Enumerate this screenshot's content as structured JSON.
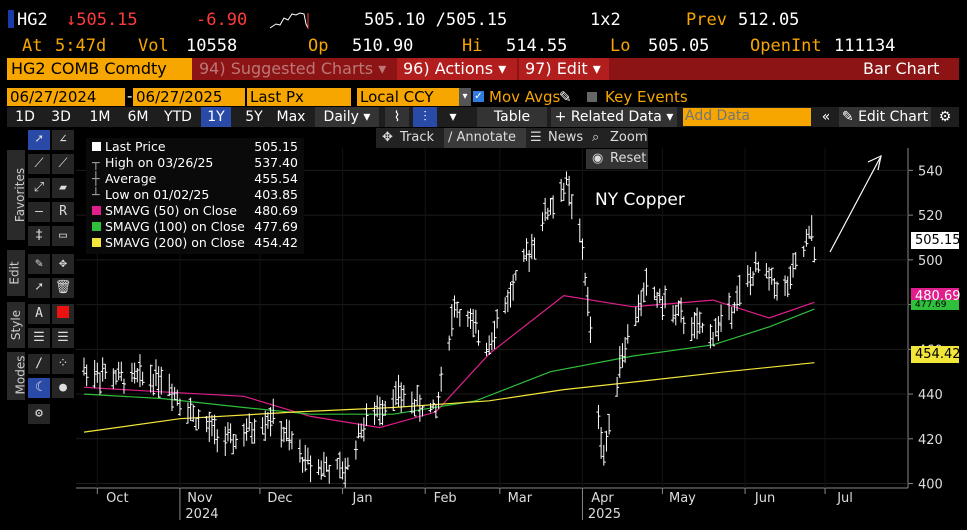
{
  "quote": {
    "ticker": "HG2",
    "last": "↓505.15",
    "change": "-6.90",
    "bid_ask": "505.10 /505.15",
    "size": "1x2",
    "prev_label": "Prev",
    "prev": "512.05",
    "at_label": "At",
    "at_time": "5:47d",
    "vol_label": "Vol",
    "vol": "10558",
    "op_label": "Op",
    "open": "510.90",
    "hi_label": "Hi",
    "high": "514.55",
    "lo_label": "Lo",
    "low": "505.05",
    "oi_label": "OpenInt",
    "open_int": "111134"
  },
  "toolbar": {
    "security": "HG2 COMB Comdty",
    "suggested": "94) Suggested Charts ▾",
    "actions": "96) Actions ▾",
    "edit": "97) Edit ▾",
    "chart_type": "Bar Chart"
  },
  "range": {
    "start": "06/27/2024",
    "end": "06/27/2025",
    "field": "Last Px",
    "currency": "Local CCY",
    "mov_avgs": "Mov Avgs",
    "key_events": "Key Events"
  },
  "periods": {
    "items": [
      "1D",
      "3D",
      "1M",
      "6M",
      "YTD",
      "1Y",
      "5Y",
      "Max"
    ],
    "active": "1Y",
    "frequency": "Daily ▾",
    "table": "Table",
    "related": "+ Related Data ▾",
    "add_data_placeholder": "Add Data",
    "edit_chart": "Edit Chart"
  },
  "subtools": {
    "track": "Track",
    "annotate": "Annotate",
    "news": "News",
    "zoom": "Zoom",
    "reset": "Reset"
  },
  "side_tabs": [
    "Favorites",
    "Edit",
    "Style",
    "Modes"
  ],
  "legend": [
    {
      "label": "Last Price",
      "value": "505.15",
      "color": "#ffffff"
    },
    {
      "label": "High on 03/26/25",
      "value": "537.40",
      "color": ""
    },
    {
      "label": "Average",
      "value": "455.54",
      "color": ""
    },
    {
      "label": "Low on 01/02/25",
      "value": "403.85",
      "color": ""
    },
    {
      "label": "SMAVG (50)  on Close",
      "value": "480.69",
      "color": "#e01e8c"
    },
    {
      "label": "SMAVG (100)  on Close",
      "value": "477.69",
      "color": "#2fbf3a"
    },
    {
      "label": "SMAVG (200)  on Close",
      "value": "454.42",
      "color": "#f2e63a"
    }
  ],
  "annotation_text": "NY Copper",
  "axis_tags": {
    "last": "505.15",
    "sma50": "480.69",
    "sma100": "477.69",
    "sma200": "454.42"
  },
  "chart_data": {
    "type": "bar",
    "title": "NY Copper",
    "ylim": [
      398,
      550
    ],
    "y_ticks": [
      400,
      420,
      440,
      460,
      480,
      500,
      520,
      540
    ],
    "x_months": [
      "Oct",
      "Nov",
      "Dec",
      "Jan",
      "Feb",
      "Mar",
      "Apr",
      "May",
      "Jun",
      "Jul"
    ],
    "x_years": [
      "2024",
      "2025"
    ],
    "price_path": [
      [
        "2024-09-26",
        451
      ],
      [
        "2024-10-10",
        447
      ],
      [
        "2024-10-25",
        448
      ],
      [
        "2024-11-08",
        428
      ],
      [
        "2024-11-20",
        418
      ],
      [
        "2024-12-05",
        430
      ],
      [
        "2024-12-18",
        410
      ],
      [
        "2025-01-02",
        405
      ],
      [
        "2025-01-08",
        425
      ],
      [
        "2025-01-20",
        440
      ],
      [
        "2025-02-05",
        432
      ],
      [
        "2025-02-12",
        480
      ],
      [
        "2025-02-24",
        462
      ],
      [
        "2025-03-05",
        485
      ],
      [
        "2025-03-18",
        520
      ],
      [
        "2025-03-26",
        534
      ],
      [
        "2025-04-01",
        505
      ],
      [
        "2025-04-07",
        430
      ],
      [
        "2025-04-09",
        412
      ],
      [
        "2025-04-15",
        455
      ],
      [
        "2025-04-25",
        488
      ],
      [
        "2025-05-02",
        480
      ],
      [
        "2025-05-12",
        470
      ],
      [
        "2025-05-20",
        467
      ],
      [
        "2025-05-30",
        485
      ],
      [
        "2025-06-06",
        496
      ],
      [
        "2025-06-16",
        486
      ],
      [
        "2025-06-24",
        507
      ],
      [
        "2025-06-26",
        512
      ],
      [
        "2025-06-27",
        505
      ]
    ],
    "series": [
      {
        "name": "SMAVG (50)",
        "color": "#e01e8c",
        "values": [
          [
            "2024-09-26",
            443
          ],
          [
            "2024-10-25",
            441
          ],
          [
            "2024-11-25",
            439
          ],
          [
            "2024-12-20",
            430
          ],
          [
            "2025-01-15",
            425
          ],
          [
            "2025-02-05",
            432
          ],
          [
            "2025-02-25",
            458
          ],
          [
            "2025-03-25",
            484
          ],
          [
            "2025-04-20",
            479
          ],
          [
            "2025-05-20",
            482
          ],
          [
            "2025-06-10",
            474
          ],
          [
            "2025-06-27",
            481
          ]
        ]
      },
      {
        "name": "SMAVG (100)",
        "color": "#2fbf3a",
        "values": [
          [
            "2024-09-26",
            440
          ],
          [
            "2024-10-25",
            438
          ],
          [
            "2024-11-25",
            434
          ],
          [
            "2024-12-20",
            431
          ],
          [
            "2025-01-20",
            431
          ],
          [
            "2025-02-20",
            437
          ],
          [
            "2025-03-20",
            450
          ],
          [
            "2025-04-20",
            457
          ],
          [
            "2025-05-20",
            462
          ],
          [
            "2025-06-10",
            470
          ],
          [
            "2025-06-27",
            478
          ]
        ]
      },
      {
        "name": "SMAVG (200)",
        "color": "#f2e63a",
        "values": [
          [
            "2024-09-26",
            423
          ],
          [
            "2024-11-01",
            429
          ],
          [
            "2024-12-15",
            432
          ],
          [
            "2025-01-20",
            434
          ],
          [
            "2025-02-25",
            437
          ],
          [
            "2025-03-25",
            442
          ],
          [
            "2025-04-25",
            446
          ],
          [
            "2025-05-25",
            450
          ],
          [
            "2025-06-27",
            454
          ]
        ]
      }
    ]
  }
}
